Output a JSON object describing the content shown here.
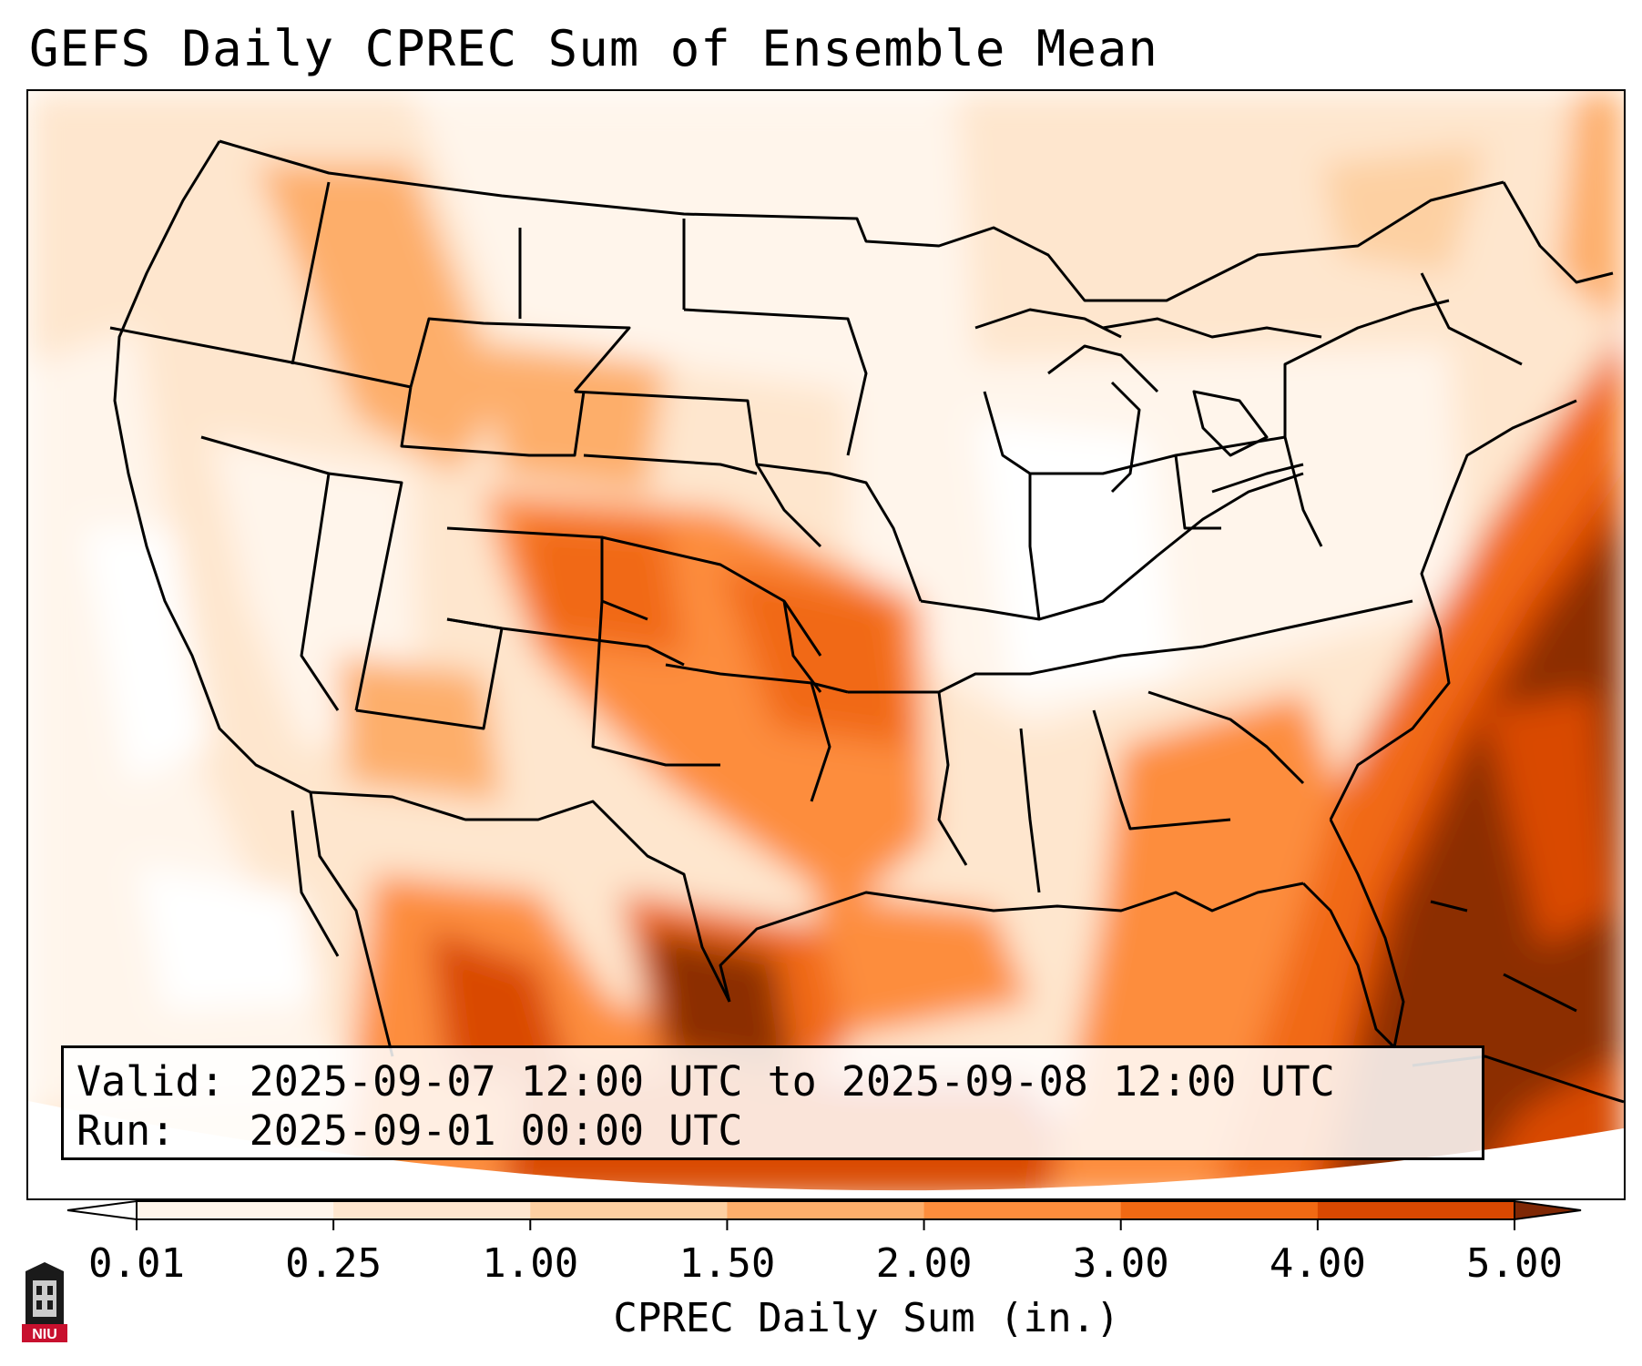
{
  "title": "GEFS Daily CPREC Sum of Ensemble Mean",
  "info": {
    "valid_label": "Valid:",
    "valid_value": "2025-09-07 12:00 UTC to 2025-09-08 12:00 UTC",
    "run_label": "Run:",
    "run_value": "2025-09-01 00:00 UTC"
  },
  "colorbar": {
    "label": "CPREC Daily Sum (in.)",
    "ticks": [
      "0.01",
      "0.25",
      "1.00",
      "1.50",
      "2.00",
      "3.00",
      "4.00",
      "5.00"
    ],
    "colors": [
      "#fff5eb",
      "#fee6ce",
      "#fdd0a2",
      "#fdae6b",
      "#fd8d3c",
      "#f16913",
      "#d94801",
      "#8c2d04"
    ],
    "under_color": "#ffffff",
    "over_color": "#7f2704"
  },
  "logo": {
    "text": "NIU"
  }
}
